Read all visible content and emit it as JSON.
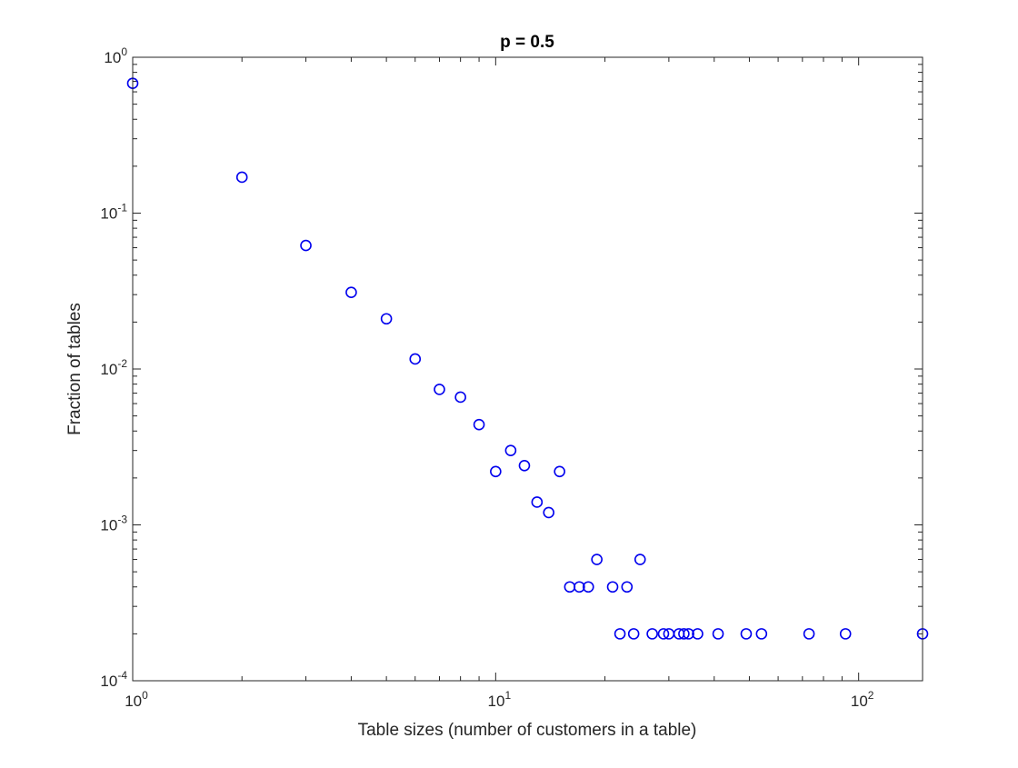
{
  "chart_data": {
    "type": "scatter",
    "title": "p = 0.5",
    "xlabel": "Table sizes (number of customers in a table)",
    "ylabel": "Fraction of tables",
    "xscale": "log",
    "yscale": "log",
    "xlim": [
      1,
      150
    ],
    "ylim": [
      0.0001,
      1
    ],
    "grid": false,
    "legend": "none",
    "marker": "circle",
    "marker_color": "#0000ee",
    "x_ticks": [
      {
        "value": 1,
        "base": "10",
        "exp": "0"
      },
      {
        "value": 10,
        "base": "10",
        "exp": "1"
      },
      {
        "value": 100,
        "base": "10",
        "exp": "2"
      }
    ],
    "y_ticks": [
      {
        "value": 1,
        "base": "10",
        "exp": "0"
      },
      {
        "value": 0.1,
        "base": "10",
        "exp": "-1"
      },
      {
        "value": 0.01,
        "base": "10",
        "exp": "-2"
      },
      {
        "value": 0.001,
        "base": "10",
        "exp": "-3"
      },
      {
        "value": 0.0001,
        "base": "10",
        "exp": "-4"
      }
    ],
    "points": [
      {
        "x": 1,
        "y": 0.68
      },
      {
        "x": 2,
        "y": 0.17
      },
      {
        "x": 3,
        "y": 0.062
      },
      {
        "x": 4,
        "y": 0.031
      },
      {
        "x": 5,
        "y": 0.021
      },
      {
        "x": 6,
        "y": 0.0116
      },
      {
        "x": 7,
        "y": 0.0074
      },
      {
        "x": 8,
        "y": 0.0066
      },
      {
        "x": 9,
        "y": 0.0044
      },
      {
        "x": 10,
        "y": 0.0022
      },
      {
        "x": 11,
        "y": 0.003
      },
      {
        "x": 12,
        "y": 0.0024
      },
      {
        "x": 13,
        "y": 0.0014
      },
      {
        "x": 14,
        "y": 0.0012
      },
      {
        "x": 15,
        "y": 0.0022
      },
      {
        "x": 16,
        "y": 0.0004
      },
      {
        "x": 17,
        "y": 0.0004
      },
      {
        "x": 18,
        "y": 0.0004
      },
      {
        "x": 19,
        "y": 0.0006
      },
      {
        "x": 21,
        "y": 0.0004
      },
      {
        "x": 22,
        "y": 0.0002
      },
      {
        "x": 23,
        "y": 0.0004
      },
      {
        "x": 24,
        "y": 0.0002
      },
      {
        "x": 25,
        "y": 0.0006
      },
      {
        "x": 27,
        "y": 0.0002
      },
      {
        "x": 29,
        "y": 0.0002
      },
      {
        "x": 30,
        "y": 0.0002
      },
      {
        "x": 32,
        "y": 0.0002
      },
      {
        "x": 33,
        "y": 0.0002
      },
      {
        "x": 34,
        "y": 0.0002
      },
      {
        "x": 36,
        "y": 0.0002
      },
      {
        "x": 41,
        "y": 0.0002
      },
      {
        "x": 49,
        "y": 0.0002
      },
      {
        "x": 54,
        "y": 0.0002
      },
      {
        "x": 73,
        "y": 0.0002
      },
      {
        "x": 92,
        "y": 0.0002
      },
      {
        "x": 150,
        "y": 0.0002
      }
    ]
  }
}
